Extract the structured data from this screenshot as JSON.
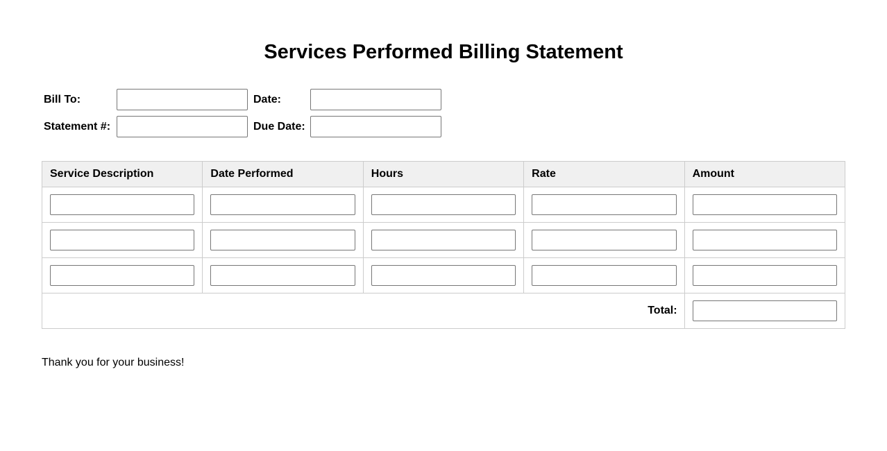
{
  "page": {
    "title": "Services Performed Billing Statement",
    "footer": "Thank you for your business!"
  },
  "meta": {
    "bill_to": {
      "label": "Bill To:",
      "value": ""
    },
    "date": {
      "label": "Date:",
      "value": ""
    },
    "statement_number": {
      "label": "Statement #:",
      "value": ""
    },
    "due_date": {
      "label": "Due Date:",
      "value": ""
    }
  },
  "table": {
    "headers": [
      "Service Description",
      "Date Performed",
      "Hours",
      "Rate",
      "Amount"
    ],
    "rows": [
      [
        "",
        "",
        "",
        "",
        ""
      ],
      [
        "",
        "",
        "",
        "",
        ""
      ],
      [
        "",
        "",
        "",
        "",
        ""
      ]
    ],
    "total_label": "Total:",
    "total_value": ""
  },
  "colors": {
    "header_bg": "#f0f0f0",
    "table_border": "#cccccc",
    "input_border": "#767676",
    "text": "#000000",
    "background": "#ffffff"
  }
}
